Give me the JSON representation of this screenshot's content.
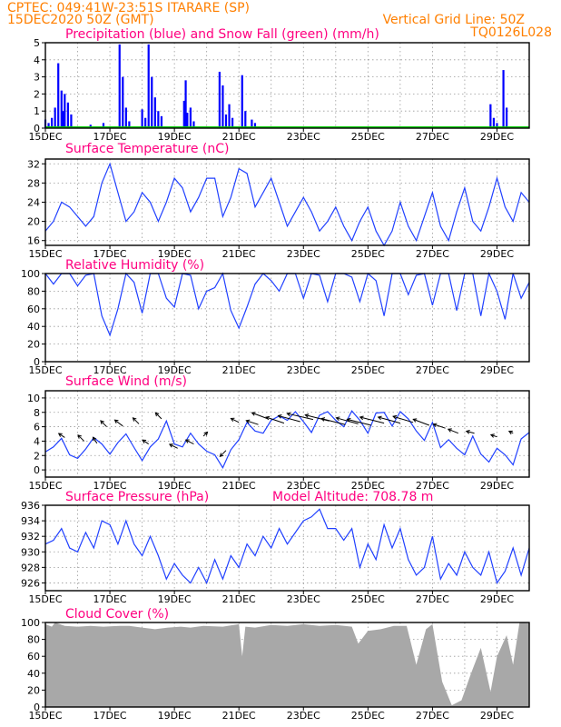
{
  "header": {
    "line1": "CPTEC:  049:41W-23:51S  ITARARE (SP)",
    "line2": "15DEC2020 50Z (GMT)",
    "grid_note": "Vertical Grid Line: 50Z",
    "model_id": "TQ0126L028"
  },
  "x_dates": [
    "15DEC",
    "17DEC",
    "19DEC",
    "21DEC",
    "23DEC",
    "25DEC",
    "27DEC",
    "29DEC"
  ],
  "colors": {
    "precip": "#0000ff",
    "snow": "#00cc00",
    "line": "#2040ff",
    "cloud": "#a8a8a8",
    "title": "#ff0080",
    "header": "#ff7f00"
  },
  "chart_data": [
    {
      "type": "bar",
      "title": "Precipitation (blue) and Snow Fall (green) (mm/h)",
      "ylim": [
        0,
        5
      ],
      "yticks": [
        "0",
        "1",
        "2",
        "3",
        "4",
        "5"
      ],
      "x_days": [
        0,
        0.1,
        0.2,
        0.3,
        0.4,
        0.5,
        0.55,
        0.6,
        0.7,
        0.8,
        1.4,
        1.8,
        2.3,
        2.4,
        2.5,
        2.6,
        3.0,
        3.1,
        3.2,
        3.3,
        3.4,
        3.5,
        3.6,
        4.3,
        4.35,
        4.4,
        4.5,
        4.6,
        5.4,
        5.5,
        5.6,
        5.7,
        5.8,
        6.1,
        6.2,
        6.4,
        6.5,
        13.8,
        13.9,
        14.0,
        14.2,
        14.3
      ],
      "values": [
        0.5,
        0.3,
        0.6,
        1.2,
        3.8,
        2.2,
        1.0,
        2.0,
        1.5,
        0.8,
        0.2,
        0.3,
        4.9,
        3.0,
        1.2,
        0.4,
        1.1,
        0.6,
        4.9,
        3.0,
        1.8,
        1.0,
        0.7,
        1.6,
        2.8,
        0.9,
        1.2,
        0.4,
        3.3,
        2.5,
        0.8,
        1.4,
        0.6,
        3.1,
        1.0,
        0.5,
        0.3,
        1.4,
        0.6,
        0.3,
        3.4,
        1.2
      ],
      "snow": 0.05
    },
    {
      "type": "line",
      "title": "Surface Temperature (nC)",
      "ylim": [
        15,
        33
      ],
      "yticks": [
        "16",
        "20",
        "24",
        "28",
        "32"
      ],
      "x_days": [
        0,
        0.25,
        0.5,
        0.75,
        1,
        1.25,
        1.5,
        1.75,
        2,
        2.25,
        2.5,
        2.75,
        3,
        3.25,
        3.5,
        3.75,
        4,
        4.25,
        4.5,
        4.75,
        5,
        5.25,
        5.5,
        5.75,
        6,
        6.25,
        6.5,
        6.75,
        7,
        7.25,
        7.5,
        7.75,
        8,
        8.25,
        8.5,
        8.75,
        9,
        9.25,
        9.5,
        9.75,
        10,
        10.25,
        10.5,
        10.75,
        11,
        11.25,
        11.5,
        11.75,
        12,
        12.25,
        12.5,
        12.75,
        13,
        13.25,
        13.5,
        13.75,
        14,
        14.25,
        14.5,
        14.75,
        15
      ],
      "values": [
        18,
        20,
        24,
        23,
        21,
        19,
        21,
        28,
        32,
        26,
        20,
        22,
        26,
        24,
        20,
        24,
        29,
        27,
        22,
        25,
        29,
        29,
        21,
        25,
        31,
        30,
        23,
        26,
        29,
        24,
        19,
        22,
        25,
        22,
        18,
        20,
        23,
        19,
        16,
        20,
        23,
        18,
        15,
        18,
        24,
        19,
        16,
        21,
        26,
        19,
        16,
        22,
        27,
        20,
        18,
        23,
        29,
        23,
        20,
        26,
        24
      ]
    },
    {
      "type": "line",
      "title": "Relative Humidity (%)",
      "ylim": [
        0,
        100
      ],
      "yticks": [
        "0",
        "20",
        "40",
        "60",
        "80",
        "100"
      ],
      "x_days": [
        0,
        0.25,
        0.5,
        0.75,
        1,
        1.25,
        1.5,
        1.75,
        2,
        2.25,
        2.5,
        2.75,
        3,
        3.25,
        3.5,
        3.75,
        4,
        4.25,
        4.5,
        4.75,
        5,
        5.25,
        5.5,
        5.75,
        6,
        6.25,
        6.5,
        6.75,
        7,
        7.25,
        7.5,
        7.75,
        8,
        8.25,
        8.5,
        8.75,
        9,
        9.25,
        9.5,
        9.75,
        10,
        10.25,
        10.5,
        10.75,
        11,
        11.25,
        11.5,
        11.75,
        12,
        12.25,
        12.5,
        12.75,
        13,
        13.25,
        13.5,
        13.75,
        14,
        14.25,
        14.5,
        14.75,
        15
      ],
      "values": [
        100,
        88,
        100,
        100,
        86,
        98,
        100,
        52,
        30,
        60,
        100,
        90,
        55,
        100,
        100,
        72,
        62,
        100,
        98,
        60,
        80,
        84,
        100,
        58,
        38,
        62,
        88,
        100,
        92,
        80,
        100,
        100,
        72,
        100,
        98,
        68,
        100,
        100,
        96,
        68,
        100,
        92,
        52,
        100,
        100,
        76,
        98,
        100,
        64,
        100,
        100,
        58,
        100,
        100,
        52,
        100,
        80,
        48,
        100,
        72,
        90
      ]
    },
    {
      "type": "line",
      "title": "Surface Wind (m/s)",
      "ylim": [
        -1,
        11
      ],
      "yticks": [
        "0",
        "2",
        "4",
        "6",
        "8",
        "10"
      ],
      "x_days": [
        0,
        0.25,
        0.5,
        0.75,
        1,
        1.25,
        1.5,
        1.75,
        2,
        2.25,
        2.5,
        2.75,
        3,
        3.25,
        3.5,
        3.75,
        4,
        4.25,
        4.5,
        4.75,
        5,
        5.25,
        5.5,
        5.75,
        6,
        6.25,
        6.5,
        6.75,
        7,
        7.25,
        7.5,
        7.75,
        8,
        8.25,
        8.5,
        8.75,
        9,
        9.25,
        9.5,
        9.75,
        10,
        10.25,
        10.5,
        10.75,
        11,
        11.25,
        11.5,
        11.75,
        12,
        12.25,
        12.5,
        12.75,
        13,
        13.25,
        13.5,
        13.75,
        14,
        14.25,
        14.5,
        14.75,
        15
      ],
      "values": [
        2.5,
        3.2,
        4.4,
        2.1,
        1.6,
        2.9,
        4.5,
        3.6,
        2.2,
        3.8,
        5.0,
        3.1,
        1.3,
        3.2,
        4.3,
        6.8,
        3.6,
        3.2,
        5.1,
        3.6,
        2.6,
        2.1,
        0.3,
        2.8,
        4.2,
        6.6,
        5.4,
        5.1,
        6.9,
        7.5,
        6.9,
        8.1,
        6.7,
        5.2,
        7.6,
        8.1,
        6.9,
        6.0,
        8.2,
        6.9,
        5.1,
        7.9,
        8.0,
        6.1,
        8.1,
        7.1,
        5.4,
        4.1,
        6.6,
        3.1,
        4.2,
        3.0,
        2.1,
        4.7,
        2.2,
        1.1,
        3.0,
        2.1,
        0.7,
        4.3,
        5.2
      ],
      "arrows_x_days": [
        0.6,
        1.2,
        1.6,
        1.9,
        2.4,
        2.9,
        3.2,
        3.6,
        4.1,
        4.6,
        4.9,
        5.6,
        6.0,
        6.6,
        6.9,
        7.4,
        7.9,
        8.3,
        8.8,
        9.3,
        9.7,
        10.1,
        10.5,
        11.0,
        11.4,
        11.9,
        12.4,
        12.8,
        13.3,
        14.0,
        14.5
      ],
      "arrows_y": [
        4.5,
        4.0,
        3.7,
        6.0,
        6.1,
        6.4,
        3.6,
        7.1,
        3.0,
        3.6,
        4.7,
        2.7,
        6.6,
        6.3,
        7.1,
        6.5,
        6.7,
        7.0,
        6.8,
        6.3,
        6.4,
        6.2,
        6.5,
        6.5,
        6.6,
        6.2,
        5.8,
        5.1,
        5.1,
        4.6,
        5.1
      ],
      "arrows_u": [
        -3,
        -3,
        -2,
        -3,
        -4,
        -3,
        -3,
        -3,
        -4,
        -4,
        2,
        -3,
        -4,
        -6,
        -8,
        -9,
        -11,
        -13,
        -12,
        -12,
        -11,
        -12,
        -12,
        -11,
        -10,
        -8,
        -6,
        -5,
        -4,
        -3,
        -2
      ],
      "arrows_v": [
        2,
        3,
        3,
        3,
        3,
        3,
        2,
        3,
        2,
        2,
        2,
        -3,
        2,
        2,
        3,
        3,
        3,
        3,
        3,
        3,
        3,
        3,
        3,
        3,
        3,
        3,
        2,
        2,
        1,
        1,
        1
      ]
    },
    {
      "type": "line",
      "title": "Surface Pressure (hPa)",
      "subtitle": "Model Altitude: 708.78 m",
      "ylim": [
        925,
        936
      ],
      "yticks": [
        "926",
        "928",
        "930",
        "932",
        "934",
        "936"
      ],
      "x_days": [
        0,
        0.25,
        0.5,
        0.75,
        1,
        1.25,
        1.5,
        1.75,
        2,
        2.25,
        2.5,
        2.75,
        3,
        3.25,
        3.5,
        3.75,
        4,
        4.25,
        4.5,
        4.75,
        5,
        5.25,
        5.5,
        5.75,
        6,
        6.25,
        6.5,
        6.75,
        7,
        7.25,
        7.5,
        7.75,
        8,
        8.25,
        8.5,
        8.75,
        9,
        9.25,
        9.5,
        9.75,
        10,
        10.25,
        10.5,
        10.75,
        11,
        11.25,
        11.5,
        11.75,
        12,
        12.25,
        12.5,
        12.75,
        13,
        13.25,
        13.5,
        13.75,
        14,
        14.25,
        14.5,
        14.75,
        15
      ],
      "values": [
        931,
        931.5,
        933,
        930.5,
        930,
        932.5,
        930.5,
        934,
        933.5,
        931,
        934,
        931,
        929.5,
        932,
        929.5,
        926.5,
        928.5,
        927,
        926,
        928,
        926,
        929,
        926.5,
        929.5,
        928,
        931,
        929.5,
        932,
        930.5,
        933,
        931,
        932.5,
        934,
        934.5,
        935.5,
        933,
        933,
        931.5,
        933,
        928,
        931,
        929,
        933.5,
        930.5,
        933,
        929,
        927,
        928,
        932,
        926.5,
        928.5,
        927,
        930,
        928,
        927,
        930,
        926,
        927.5,
        930.5,
        927,
        930.5
      ]
    },
    {
      "type": "area",
      "title": "Cloud Cover (%)",
      "ylim": [
        0,
        100
      ],
      "yticks": [
        "0",
        "20",
        "40",
        "60",
        "80",
        "100"
      ],
      "x_days": [
        0,
        0.2,
        0.3,
        0.6,
        1.0,
        1.4,
        1.8,
        2.3,
        2.6,
        3.0,
        3.4,
        3.8,
        4.2,
        4.5,
        4.9,
        5.5,
        6.0,
        6.1,
        6.2,
        6.5,
        7.0,
        7.5,
        8.0,
        8.5,
        9.0,
        9.5,
        9.7,
        10.0,
        10.4,
        10.8,
        11.2,
        11.5,
        11.8,
        12.0,
        12.3,
        12.6,
        12.9,
        13.2,
        13.5,
        13.8,
        14.0,
        14.3,
        14.5,
        14.7,
        15.0
      ],
      "values": [
        98,
        95,
        100,
        96,
        95,
        96,
        95,
        96,
        96,
        94,
        92,
        94,
        95,
        94,
        96,
        95,
        98,
        60,
        95,
        94,
        97,
        96,
        98,
        96,
        97,
        95,
        75,
        90,
        92,
        96,
        96,
        50,
        92,
        98,
        30,
        2,
        8,
        40,
        70,
        18,
        60,
        85,
        50,
        100,
        99
      ]
    }
  ]
}
